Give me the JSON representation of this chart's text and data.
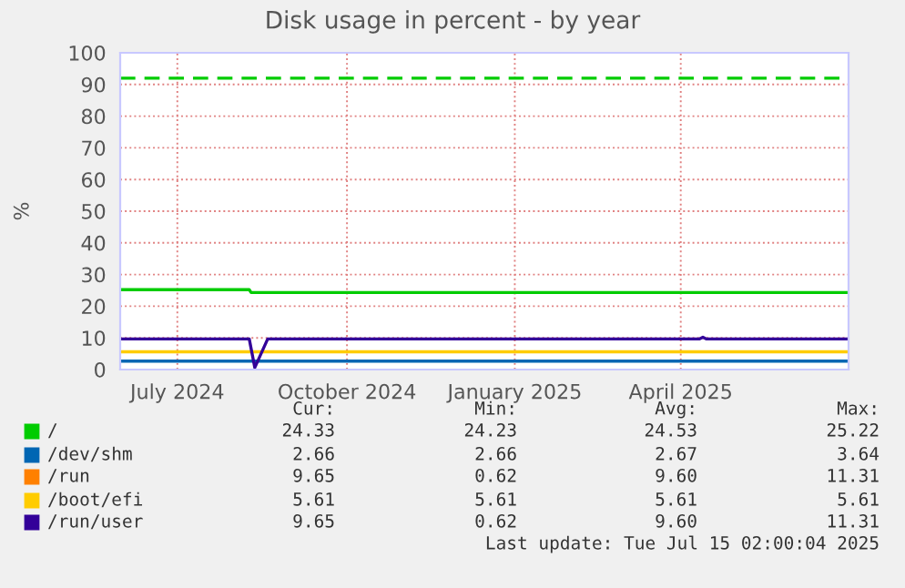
{
  "chart_data": {
    "type": "line",
    "title": "Disk usage in percent - by year",
    "ylabel": "%",
    "xlim": [
      "2024-06-15",
      "2025-07-15"
    ],
    "xticks": [
      {
        "value": "2024-07-16",
        "label": "July 2024"
      },
      {
        "value": "2024-10-16",
        "label": "October 2024"
      },
      {
        "value": "2025-01-15",
        "label": "January 2025"
      },
      {
        "value": "2025-04-15",
        "label": "April 2025"
      }
    ],
    "ylim": [
      0,
      100
    ],
    "yticks": [
      0,
      10,
      20,
      30,
      40,
      50,
      60,
      70,
      80,
      90,
      100
    ],
    "grid": true,
    "legend": "bottom",
    "series": [
      {
        "name": "/",
        "color": "#00cc00",
        "x": [
          "2024-06-15",
          "2024-08-24",
          "2024-08-25",
          "2025-07-15"
        ],
        "values": [
          25.22,
          25.22,
          24.33,
          24.33
        ]
      },
      {
        "name": "/dev/shm",
        "color": "#0066b3",
        "x": [
          "2024-06-15",
          "2025-07-15"
        ],
        "values": [
          2.66,
          2.66
        ]
      },
      {
        "name": "/run",
        "color": "#ff8000"
      },
      {
        "name": "/boot/efi",
        "color": "#ffcc00",
        "x": [
          "2024-06-15",
          "2025-07-15"
        ],
        "values": [
          5.61,
          5.61
        ]
      },
      {
        "name": "/run/user",
        "color": "#330099",
        "x": [
          "2024-06-15",
          "2024-08-24",
          "2024-08-27",
          "2024-09-03",
          "2025-04-25",
          "2025-04-27",
          "2025-04-29",
          "2025-07-15"
        ],
        "values": [
          9.65,
          9.65,
          0.62,
          9.65,
          9.65,
          10.2,
          9.65,
          9.65
        ]
      }
    ],
    "ref_lines": [
      {
        "axis": "y",
        "value": 92,
        "color": "#00cc00",
        "line_style": "dashed"
      }
    ],
    "annotations": [
      "Cur:",
      "Min:",
      "Avg:",
      "Max:",
      "24.33",
      "24.23",
      "24.53",
      "25.22",
      "2.66",
      "2.66",
      "2.67",
      "3.64",
      "9.65",
      "0.62",
      "9.60",
      "11.31",
      "5.61",
      "5.61",
      "5.61",
      "5.61",
      "9.65",
      "0.62",
      "9.60",
      "11.31",
      "Last update: Tue Jul 15 02:00:04 2025"
    ]
  }
}
